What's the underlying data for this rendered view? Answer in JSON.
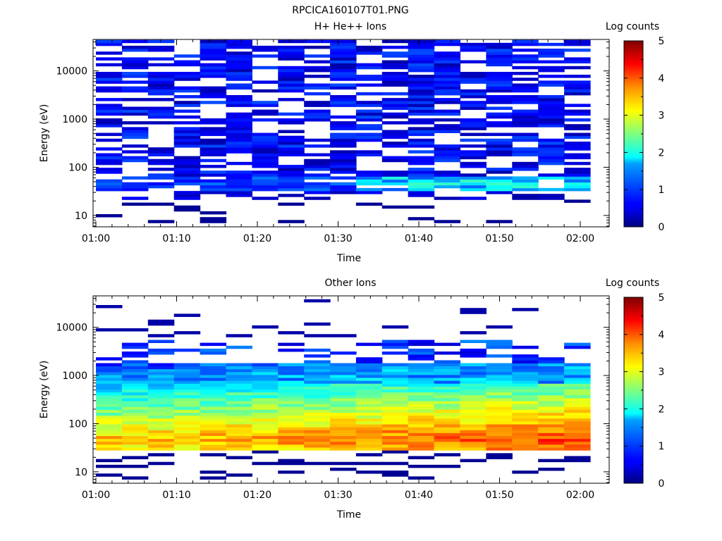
{
  "figure_title": "RPCICA160107T01.PNG",
  "chart_data": [
    {
      "type": "heatmap",
      "title": "H+ He++ Ions",
      "xlabel": "Time",
      "ylabel": "Energy (eV)",
      "x_tick_labels": [
        "01:00",
        "01:10",
        "01:20",
        "01:30",
        "01:40",
        "01:50",
        "02:00"
      ],
      "y_tick_labels": [
        "10",
        "100",
        "1000",
        "10000"
      ],
      "y_scale": "log",
      "ylim": [
        5.8,
        45000
      ],
      "colorbar": {
        "label": "Log counts",
        "range": [
          0,
          5
        ],
        "ticks": [
          "0",
          "1",
          "2",
          "3",
          "4",
          "5"
        ]
      },
      "time_columns": 19,
      "notes_low_energy": "sparse blue (log counts ~0-1) over 10-40000 eV with a 1.5-2.5 band near 40-55 eV late in interval"
    },
    {
      "type": "heatmap",
      "title": "Other Ions",
      "xlabel": "Time",
      "ylabel": "Energy (eV)",
      "x_tick_labels": [
        "01:00",
        "01:10",
        "01:20",
        "01:30",
        "01:40",
        "01:50",
        "02:00"
      ],
      "y_tick_labels": [
        "10",
        "100",
        "1000",
        "10000"
      ],
      "y_scale": "log",
      "ylim": [
        5.8,
        45000
      ],
      "colorbar": {
        "label": "Log counts",
        "range": [
          0,
          5
        ],
        "ticks": [
          "0",
          "1",
          "2",
          "3",
          "4",
          "5"
        ]
      },
      "time_columns": 19,
      "notes_low_energy": "broad population 25-1500 eV, peak log counts ~3.5-4 near 35-55 eV, increasing after 01:35"
    }
  ],
  "colors": {
    "colormap": "jet",
    "background": "#ffffff"
  }
}
